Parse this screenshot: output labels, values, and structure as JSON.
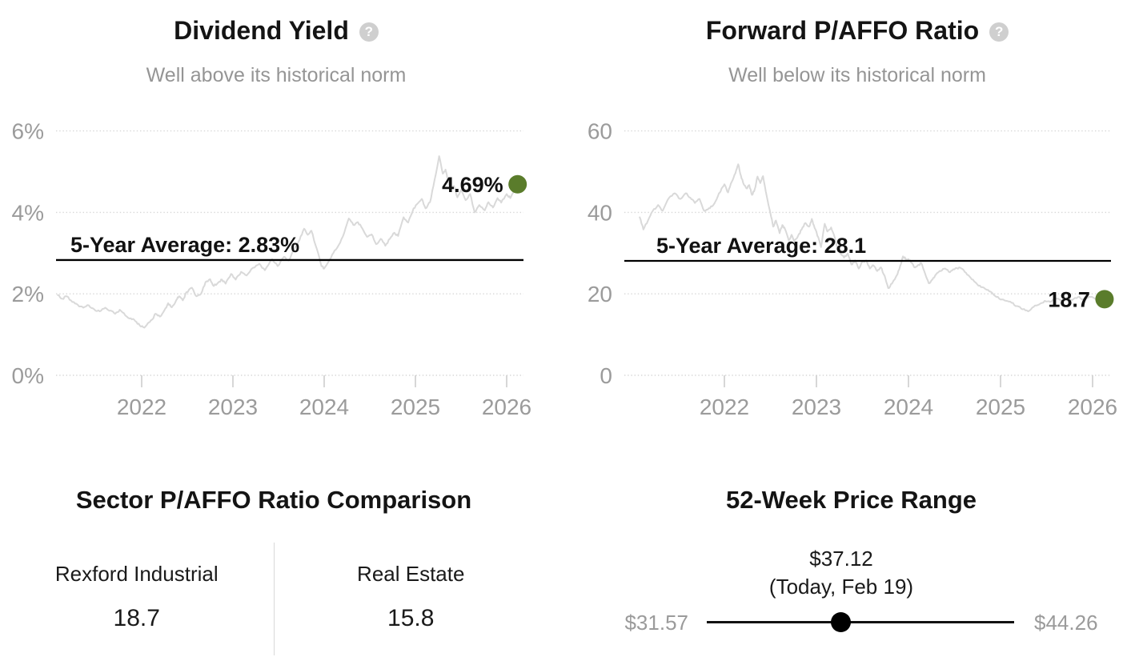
{
  "chart_data": [
    {
      "type": "line",
      "title": "Dividend Yield",
      "subtitle": "Well above its historical norm",
      "help_glyph": "?",
      "unit": "%",
      "xlim": [
        2021.05,
        2026.2
      ],
      "ylim": [
        0,
        6
      ],
      "grid": "dotted-horizontal",
      "legend": "none",
      "x_ticks": [
        {
          "value": 2022,
          "label": "2022"
        },
        {
          "value": 2023,
          "label": "2023"
        },
        {
          "value": 2024,
          "label": "2024"
        },
        {
          "value": 2025,
          "label": "2025"
        },
        {
          "value": 2026,
          "label": "2026"
        }
      ],
      "y_ticks": [
        {
          "value": 0,
          "label": "0%"
        },
        {
          "value": 2,
          "label": "2%"
        },
        {
          "value": 4,
          "label": "4%"
        },
        {
          "value": 6,
          "label": "6%"
        }
      ],
      "average": {
        "value": 2.83,
        "label": "5-Year Average: 2.83%"
      },
      "current": {
        "value": 4.69,
        "label": "4.69%"
      },
      "points": [
        [
          2021.08,
          1.97
        ],
        [
          2021.13,
          1.88
        ],
        [
          2021.18,
          1.94
        ],
        [
          2021.24,
          1.8
        ],
        [
          2021.3,
          1.73
        ],
        [
          2021.36,
          1.66
        ],
        [
          2021.42,
          1.72
        ],
        [
          2021.48,
          1.62
        ],
        [
          2021.54,
          1.57
        ],
        [
          2021.6,
          1.66
        ],
        [
          2021.66,
          1.59
        ],
        [
          2021.71,
          1.51
        ],
        [
          2021.76,
          1.61
        ],
        [
          2021.82,
          1.47
        ],
        [
          2021.88,
          1.4
        ],
        [
          2021.93,
          1.33
        ],
        [
          2021.98,
          1.22
        ],
        [
          2022.03,
          1.17
        ],
        [
          2022.08,
          1.3
        ],
        [
          2022.12,
          1.38
        ],
        [
          2022.15,
          1.51
        ],
        [
          2022.2,
          1.44
        ],
        [
          2022.25,
          1.6
        ],
        [
          2022.29,
          1.77
        ],
        [
          2022.33,
          1.67
        ],
        [
          2022.38,
          1.85
        ],
        [
          2022.41,
          1.94
        ],
        [
          2022.45,
          1.84
        ],
        [
          2022.49,
          2.04
        ],
        [
          2022.55,
          2.15
        ],
        [
          2022.6,
          1.94
        ],
        [
          2022.65,
          2.0
        ],
        [
          2022.7,
          2.29
        ],
        [
          2022.75,
          2.36
        ],
        [
          2022.79,
          2.19
        ],
        [
          2022.84,
          2.28
        ],
        [
          2022.88,
          2.35
        ],
        [
          2022.92,
          2.25
        ],
        [
          2022.98,
          2.49
        ],
        [
          2023.03,
          2.35
        ],
        [
          2023.09,
          2.54
        ],
        [
          2023.15,
          2.45
        ],
        [
          2023.22,
          2.64
        ],
        [
          2023.29,
          2.74
        ],
        [
          2023.35,
          2.58
        ],
        [
          2023.43,
          2.85
        ],
        [
          2023.49,
          2.68
        ],
        [
          2023.56,
          2.91
        ],
        [
          2023.61,
          2.82
        ],
        [
          2023.68,
          3.13
        ],
        [
          2023.73,
          3.32
        ],
        [
          2023.78,
          3.6
        ],
        [
          2023.82,
          3.45
        ],
        [
          2023.86,
          3.55
        ],
        [
          2023.92,
          3.1
        ],
        [
          2023.97,
          2.68
        ],
        [
          2024.0,
          2.62
        ],
        [
          2024.05,
          2.8
        ],
        [
          2024.1,
          3.0
        ],
        [
          2024.16,
          3.2
        ],
        [
          2024.22,
          3.5
        ],
        [
          2024.27,
          3.85
        ],
        [
          2024.32,
          3.69
        ],
        [
          2024.37,
          3.76
        ],
        [
          2024.42,
          3.6
        ],
        [
          2024.47,
          3.4
        ],
        [
          2024.52,
          3.46
        ],
        [
          2024.57,
          3.22
        ],
        [
          2024.62,
          3.35
        ],
        [
          2024.67,
          3.18
        ],
        [
          2024.72,
          3.35
        ],
        [
          2024.77,
          3.5
        ],
        [
          2024.81,
          3.42
        ],
        [
          2024.87,
          3.88
        ],
        [
          2024.92,
          3.75
        ],
        [
          2024.98,
          4.1
        ],
        [
          2025.03,
          4.23
        ],
        [
          2025.07,
          4.33
        ],
        [
          2025.11,
          4.1
        ],
        [
          2025.16,
          4.25
        ],
        [
          2025.21,
          4.8
        ],
        [
          2025.26,
          5.38
        ],
        [
          2025.3,
          4.95
        ],
        [
          2025.33,
          5.05
        ],
        [
          2025.38,
          4.56
        ],
        [
          2025.42,
          4.65
        ],
        [
          2025.46,
          4.37
        ],
        [
          2025.5,
          4.55
        ],
        [
          2025.55,
          4.3
        ],
        [
          2025.6,
          4.45
        ],
        [
          2025.65,
          4.0
        ],
        [
          2025.7,
          4.18
        ],
        [
          2025.76,
          4.05
        ],
        [
          2025.8,
          4.25
        ],
        [
          2025.85,
          4.12
        ],
        [
          2025.9,
          4.35
        ],
        [
          2025.94,
          4.24
        ],
        [
          2026.0,
          4.45
        ],
        [
          2026.04,
          4.35
        ],
        [
          2026.08,
          4.55
        ],
        [
          2026.12,
          4.69
        ]
      ]
    },
    {
      "type": "line",
      "title": "Forward P/AFFO Ratio",
      "subtitle": "Well below its historical norm",
      "help_glyph": "?",
      "unit": "x",
      "xlim": [
        2021.05,
        2026.2
      ],
      "ylim": [
        0,
        60
      ],
      "grid": "dotted-horizontal",
      "legend": "none",
      "x_ticks": [
        {
          "value": 2022,
          "label": "2022"
        },
        {
          "value": 2023,
          "label": "2023"
        },
        {
          "value": 2024,
          "label": "2024"
        },
        {
          "value": 2025,
          "label": "2025"
        },
        {
          "value": 2026,
          "label": "2026"
        }
      ],
      "y_ticks": [
        {
          "value": 0,
          "label": "0"
        },
        {
          "value": 20,
          "label": "20"
        },
        {
          "value": 40,
          "label": "40"
        },
        {
          "value": 60,
          "label": "60"
        }
      ],
      "average": {
        "value": 28.1,
        "label": "5-Year Average: 28.1"
      },
      "current": {
        "value": 18.7,
        "label": "18.7"
      },
      "points": [
        [
          2021.08,
          38.8
        ],
        [
          2021.12,
          35.8
        ],
        [
          2021.17,
          38.0
        ],
        [
          2021.22,
          40.3
        ],
        [
          2021.28,
          41.8
        ],
        [
          2021.33,
          40.4
        ],
        [
          2021.4,
          43.6
        ],
        [
          2021.46,
          44.7
        ],
        [
          2021.52,
          43.3
        ],
        [
          2021.58,
          44.7
        ],
        [
          2021.63,
          43.6
        ],
        [
          2021.68,
          42.3
        ],
        [
          2021.73,
          43.3
        ],
        [
          2021.78,
          40.4
        ],
        [
          2021.83,
          41.0
        ],
        [
          2021.88,
          41.8
        ],
        [
          2021.93,
          44.0
        ],
        [
          2021.97,
          45.9
        ],
        [
          2022.0,
          46.9
        ],
        [
          2022.04,
          44.9
        ],
        [
          2022.08,
          47.5
        ],
        [
          2022.12,
          49.6
        ],
        [
          2022.15,
          51.8
        ],
        [
          2022.18,
          49.0
        ],
        [
          2022.21,
          46.9
        ],
        [
          2022.24,
          45.9
        ],
        [
          2022.27,
          46.7
        ],
        [
          2022.3,
          44.3
        ],
        [
          2022.33,
          45.7
        ],
        [
          2022.36,
          48.8
        ],
        [
          2022.39,
          47.2
        ],
        [
          2022.42,
          48.9
        ],
        [
          2022.46,
          44.0
        ],
        [
          2022.5,
          39.8
        ],
        [
          2022.53,
          36.5
        ],
        [
          2022.56,
          38.0
        ],
        [
          2022.6,
          34.9
        ],
        [
          2022.63,
          36.9
        ],
        [
          2022.66,
          35.8
        ],
        [
          2022.7,
          33.1
        ],
        [
          2022.73,
          34.5
        ],
        [
          2022.76,
          32.9
        ],
        [
          2022.8,
          34.2
        ],
        [
          2022.84,
          35.8
        ],
        [
          2022.88,
          37.4
        ],
        [
          2022.92,
          36.5
        ],
        [
          2022.95,
          38.4
        ],
        [
          2022.98,
          36.2
        ],
        [
          2023.02,
          33.9
        ],
        [
          2023.05,
          31.5
        ],
        [
          2023.09,
          37.2
        ],
        [
          2023.12,
          35.3
        ],
        [
          2023.16,
          36.3
        ],
        [
          2023.19,
          34.5
        ],
        [
          2023.23,
          31.0
        ],
        [
          2023.26,
          29.9
        ],
        [
          2023.3,
          28.9
        ],
        [
          2023.34,
          29.9
        ],
        [
          2023.38,
          27.2
        ],
        [
          2023.42,
          28.2
        ],
        [
          2023.46,
          26.2
        ],
        [
          2023.5,
          27.9
        ],
        [
          2023.54,
          28.2
        ],
        [
          2023.58,
          26.2
        ],
        [
          2023.62,
          27.0
        ],
        [
          2023.66,
          25.6
        ],
        [
          2023.7,
          26.5
        ],
        [
          2023.74,
          24.5
        ],
        [
          2023.78,
          21.4
        ],
        [
          2023.82,
          22.5
        ],
        [
          2023.86,
          24.0
        ],
        [
          2023.9,
          26.0
        ],
        [
          2023.94,
          29.2
        ],
        [
          2023.98,
          28.4
        ],
        [
          2024.02,
          28.2
        ],
        [
          2024.06,
          26.6
        ],
        [
          2024.1,
          27.0
        ],
        [
          2024.14,
          27.5
        ],
        [
          2024.18,
          25.0
        ],
        [
          2024.22,
          22.6
        ],
        [
          2024.26,
          23.5
        ],
        [
          2024.3,
          24.8
        ],
        [
          2024.35,
          25.6
        ],
        [
          2024.4,
          26.2
        ],
        [
          2024.45,
          25.3
        ],
        [
          2024.5,
          26.0
        ],
        [
          2024.55,
          26.5
        ],
        [
          2024.6,
          25.8
        ],
        [
          2024.65,
          24.6
        ],
        [
          2024.7,
          23.5
        ],
        [
          2024.76,
          22.0
        ],
        [
          2024.82,
          21.5
        ],
        [
          2024.88,
          20.6
        ],
        [
          2024.94,
          19.5
        ],
        [
          2025.0,
          18.6
        ],
        [
          2025.06,
          18.3
        ],
        [
          2025.12,
          17.8
        ],
        [
          2025.18,
          17.0
        ],
        [
          2025.24,
          16.2
        ],
        [
          2025.3,
          15.7
        ],
        [
          2025.36,
          16.8
        ],
        [
          2025.42,
          17.4
        ],
        [
          2025.48,
          18.3
        ],
        [
          2025.54,
          18.0
        ],
        [
          2025.6,
          18.8
        ],
        [
          2025.66,
          18.4
        ],
        [
          2025.72,
          19.0
        ],
        [
          2025.78,
          18.5
        ],
        [
          2025.84,
          19.2
        ],
        [
          2025.9,
          18.7
        ],
        [
          2025.96,
          19.3
        ],
        [
          2026.02,
          18.9
        ],
        [
          2026.07,
          18.3
        ],
        [
          2026.13,
          18.7
        ]
      ]
    }
  ],
  "sector_comparison": {
    "title": "Sector P/AFFO Ratio Comparison",
    "items": [
      {
        "label": "Rexford Industrial",
        "value": "18.7"
      },
      {
        "label": "Real Estate",
        "value": "15.8"
      }
    ]
  },
  "price_range": {
    "title": "52-Week Price Range",
    "current_label": "$37.12",
    "date_label": "(Today, Feb 19)",
    "low_label": "$31.57",
    "high_label": "$44.26",
    "low": 31.57,
    "high": 44.26,
    "current": 37.12
  },
  "colors": {
    "accent_green": "#5a7c2b",
    "series_line": "#d9d9d9",
    "grid_line": "#d7d7d7",
    "tick_mark": "#cdcdcd",
    "axis_text": "#9b9b9b",
    "average_line": "#000000",
    "annotation_text": "#111111",
    "subtitle_text": "#959595",
    "muted_text": "#9b9b9b",
    "title_text": "#141414",
    "divider": "#d9d9d9",
    "help_icon_bg": "#cfcfcf",
    "slider": "#000000"
  }
}
